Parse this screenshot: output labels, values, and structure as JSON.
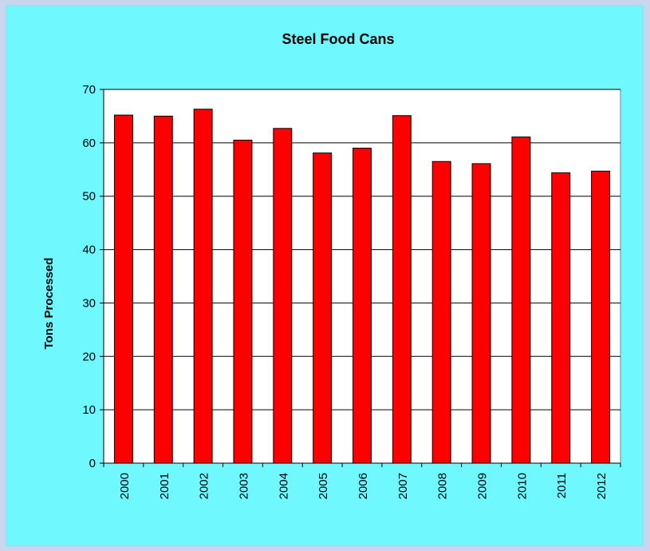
{
  "chart_data": {
    "type": "bar",
    "title": "Steel Food Cans",
    "xlabel": "",
    "ylabel": "Tons Processed",
    "categories": [
      "2000",
      "2001",
      "2002",
      "2003",
      "2004",
      "2005",
      "2006",
      "2007",
      "2008",
      "2009",
      "2010",
      "2011",
      "2012"
    ],
    "values": [
      65.2,
      65.0,
      66.3,
      60.5,
      62.7,
      58.1,
      59.0,
      65.1,
      56.5,
      56.1,
      61.1,
      54.4,
      54.7
    ],
    "ylim": [
      0,
      70
    ],
    "yticks": [
      "0",
      "10",
      "20",
      "30",
      "40",
      "50",
      "60",
      "70"
    ],
    "grid": true,
    "legend": "none",
    "colors": {
      "bar": "#ff0000",
      "bar_outline": "#000000",
      "plot_background": "#ffffff",
      "chart_background": "#6ff9ff",
      "gridline": "#000000"
    }
  }
}
